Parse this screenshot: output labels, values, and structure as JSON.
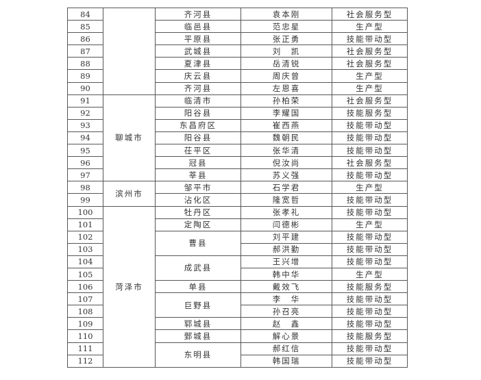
{
  "groups": [
    {
      "city": "",
      "counties": [
        {
          "county": "齐河县",
          "people": [
            {
              "no": "84",
              "name": "袁本刚",
              "type": "社会服务型"
            }
          ]
        },
        {
          "county": "临邑县",
          "people": [
            {
              "no": "85",
              "name": "范忠星",
              "type": "生产型"
            }
          ]
        },
        {
          "county": "平原县",
          "people": [
            {
              "no": "86",
              "name": "张正勇",
              "type": "技能带动型"
            }
          ]
        },
        {
          "county": "武城县",
          "people": [
            {
              "no": "87",
              "name": "刘　凯",
              "type": "社会服务型"
            }
          ]
        },
        {
          "county": "夏津县",
          "people": [
            {
              "no": "88",
              "name": "岳清锐",
              "type": "社会服务型"
            }
          ]
        },
        {
          "county": "庆云县",
          "people": [
            {
              "no": "89",
              "name": "周庆曾",
              "type": "生产型"
            }
          ]
        },
        {
          "county": "齐河县",
          "people": [
            {
              "no": "90",
              "name": "左恩喜",
              "type": "生产型"
            }
          ]
        }
      ]
    },
    {
      "city": "聊城市",
      "counties": [
        {
          "county": "临清市",
          "people": [
            {
              "no": "91",
              "name": "孙柏荣",
              "type": "社会服务型"
            }
          ]
        },
        {
          "county": "阳谷县",
          "people": [
            {
              "no": "92",
              "name": "李耀国",
              "type": "技能服务型"
            }
          ]
        },
        {
          "county": "东昌府区",
          "people": [
            {
              "no": "93",
              "name": "崔西燕",
              "type": "技能带动型"
            }
          ]
        },
        {
          "county": "阳谷县",
          "people": [
            {
              "no": "94",
              "name": "魏朝民",
              "type": "技能带动型"
            }
          ]
        },
        {
          "county": "茌平区",
          "people": [
            {
              "no": "95",
              "name": "张华清",
              "type": "技能带动型"
            }
          ]
        },
        {
          "county": "冠县",
          "people": [
            {
              "no": "96",
              "name": "倪汝尚",
              "type": "社会服务型"
            }
          ]
        },
        {
          "county": "莘县",
          "people": [
            {
              "no": "97",
              "name": "苏义强",
              "type": "技能带动型"
            }
          ]
        }
      ]
    },
    {
      "city": "滨州市",
      "counties": [
        {
          "county": "邹平市",
          "people": [
            {
              "no": "98",
              "name": "石学君",
              "type": "生产型"
            }
          ]
        },
        {
          "county": "沾化区",
          "people": [
            {
              "no": "99",
              "name": "隆宽哲",
              "type": "技能带动型"
            }
          ]
        }
      ]
    },
    {
      "city": "菏泽市",
      "counties": [
        {
          "county": "牡丹区",
          "people": [
            {
              "no": "100",
              "name": "张孝礼",
              "type": "技能带动型"
            }
          ]
        },
        {
          "county": "定陶区",
          "people": [
            {
              "no": "101",
              "name": "闫德彬",
              "type": "生产型"
            }
          ]
        },
        {
          "county": "曹县",
          "people": [
            {
              "no": "102",
              "name": "刘平建",
              "type": "技能带动型"
            },
            {
              "no": "103",
              "name": "郝洪勤",
              "type": "技能带动型"
            }
          ]
        },
        {
          "county": "成武县",
          "people": [
            {
              "no": "104",
              "name": "王兴增",
              "type": "技能带动型"
            },
            {
              "no": "105",
              "name": "韩中华",
              "type": "生产型"
            }
          ]
        },
        {
          "county": "单县",
          "people": [
            {
              "no": "106",
              "name": "戴效飞",
              "type": "技能服务型"
            }
          ]
        },
        {
          "county": "巨野县",
          "people": [
            {
              "no": "107",
              "name": "李　华",
              "type": "技能带动型"
            },
            {
              "no": "108",
              "name": "孙召亮",
              "type": "技能带动型"
            }
          ]
        },
        {
          "county": "郓城县",
          "people": [
            {
              "no": "109",
              "name": "赵　鑫",
              "type": "技能带动型"
            }
          ]
        },
        {
          "county": "鄄城县",
          "people": [
            {
              "no": "110",
              "name": "解心景",
              "type": "技能服务型"
            }
          ]
        },
        {
          "county": "东明县",
          "people": [
            {
              "no": "111",
              "name": "郝红信",
              "type": "技能带动型"
            },
            {
              "no": "112",
              "name": "韩国瑞",
              "type": "技能带动型"
            }
          ]
        }
      ]
    }
  ]
}
